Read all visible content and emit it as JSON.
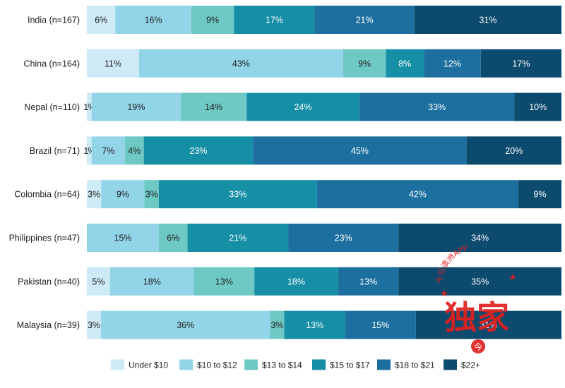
{
  "chart_data": {
    "type": "bar",
    "orientation": "horizontal",
    "stacked": true,
    "normalized": true,
    "unit": "%",
    "title": "",
    "xlabel": "",
    "ylabel": "",
    "xlim": [
      0,
      100
    ],
    "grid": false,
    "legend_position": "bottom",
    "categories": [
      "India (n=167)",
      "China (n=164)",
      "Nepal (n=110)",
      "Brazil (n=71)",
      "Colombia (n=64)",
      "Philippines (n=47)",
      "Pakistan (n=40)",
      "Malaysia (n=39)"
    ],
    "series": [
      {
        "name": "Under $10",
        "color": "#cdeaf6",
        "text_color": "#222222",
        "values": [
          6,
          11,
          1,
          1,
          3,
          null,
          5,
          3
        ],
        "labels": [
          "6%",
          "11%",
          "1%",
          "1%",
          "3%",
          "",
          "5%",
          "3%"
        ]
      },
      {
        "name": "$10 to $12",
        "color": "#92d5e8",
        "text_color": "#222222",
        "values": [
          16,
          43,
          19,
          7,
          9,
          15,
          18,
          36
        ],
        "labels": [
          "16%",
          "43%",
          "19%",
          "7%",
          "9%",
          "15%",
          "18%",
          "36%"
        ]
      },
      {
        "name": "$13 to $14",
        "color": "#6ec8c4",
        "text_color": "#222222",
        "values": [
          9,
          9,
          14,
          4,
          3,
          6,
          13,
          3
        ],
        "labels": [
          "9%",
          "9%",
          "14%",
          "4%",
          "3%",
          "6%",
          "13%",
          "3%"
        ]
      },
      {
        "name": "$15 to $17",
        "color": "#168fa6",
        "text_color": "#ffffff",
        "values": [
          17,
          8,
          24,
          23,
          33,
          21,
          18,
          13
        ],
        "labels": [
          "17%",
          "8%",
          "24%",
          "23%",
          "33%",
          "21%",
          "18%",
          "13%"
        ]
      },
      {
        "name": "$18 to $21",
        "color": "#1d6f9f",
        "text_color": "#ffffff",
        "values": [
          21,
          12,
          33,
          45,
          42,
          23,
          13,
          15
        ],
        "labels": [
          "21%",
          "12%",
          "33%",
          "45%",
          "42%",
          "23%",
          "13%",
          "15%"
        ]
      },
      {
        "name": "$22+",
        "color": "#0c4a6e",
        "text_color": "#ffffff",
        "values": [
          31,
          17,
          10,
          20,
          9,
          34,
          35,
          31
        ],
        "labels": [
          "31%",
          "17%",
          "10%",
          "20%",
          "9%",
          "34%",
          "35%",
          "31%"
        ]
      }
    ]
  },
  "watermark": {
    "arc_text": "今日澳洲APP",
    "main_text": "独家",
    "badge_text": "今",
    "color": "#e0201e"
  }
}
